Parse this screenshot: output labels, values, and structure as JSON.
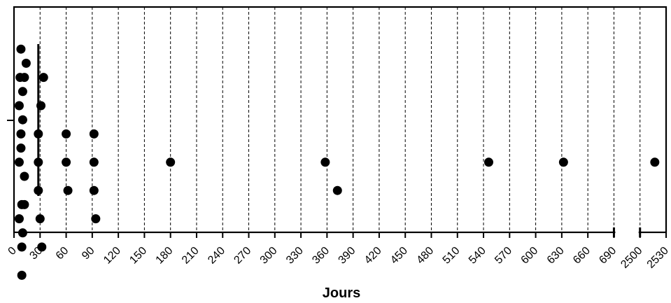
{
  "chart_data": {
    "type": "scatter",
    "title": "",
    "xlabel": "Jours",
    "ylabel": "",
    "axis_break": {
      "before": 690,
      "after": 2500
    },
    "x_ticks": [
      0,
      30,
      60,
      90,
      120,
      150,
      180,
      210,
      240,
      270,
      300,
      330,
      360,
      390,
      420,
      450,
      480,
      510,
      540,
      570,
      600,
      630,
      660,
      690,
      2500,
      2530
    ],
    "x_tick_labels": [
      "0",
      "30",
      "60",
      "90",
      "120",
      "150",
      "180",
      "210",
      "240",
      "270",
      "300",
      "330",
      "360",
      "390",
      "420",
      "450",
      "480",
      "510",
      "540",
      "570",
      "600",
      "630",
      "660",
      "690",
      "2500",
      "2530"
    ],
    "xlim": [
      0,
      2530
    ],
    "grid": "vertical dashed",
    "legend": "none",
    "reference_line": {
      "x": 28,
      "style": "solid"
    },
    "points": [
      {
        "x": 8,
        "row": -5
      },
      {
        "x": 14,
        "row": -4
      },
      {
        "x": 7,
        "row": -3
      },
      {
        "x": 12,
        "row": -3
      },
      {
        "x": 34,
        "row": -3
      },
      {
        "x": 10,
        "row": -2
      },
      {
        "x": 6,
        "row": -1
      },
      {
        "x": 31,
        "row": -1
      },
      {
        "x": 10,
        "row": 0
      },
      {
        "x": 8,
        "row": 1
      },
      {
        "x": 28,
        "row": 1
      },
      {
        "x": 60,
        "row": 1
      },
      {
        "x": 92,
        "row": 1
      },
      {
        "x": 8,
        "row": 2
      },
      {
        "x": 6,
        "row": 3
      },
      {
        "x": 28,
        "row": 3
      },
      {
        "x": 60,
        "row": 3
      },
      {
        "x": 92,
        "row": 3
      },
      {
        "x": 180,
        "row": 3
      },
      {
        "x": 358,
        "row": 3
      },
      {
        "x": 546,
        "row": 3
      },
      {
        "x": 632,
        "row": 3
      },
      {
        "x": 2517,
        "row": 3
      },
      {
        "x": 12,
        "row": 4
      },
      {
        "x": 28,
        "row": 5
      },
      {
        "x": 62,
        "row": 5
      },
      {
        "x": 92,
        "row": 5
      },
      {
        "x": 372,
        "row": 5
      },
      {
        "x": 9,
        "row": 6
      },
      {
        "x": 12,
        "row": 6
      },
      {
        "x": 6,
        "row": 7
      },
      {
        "x": 30,
        "row": 7
      },
      {
        "x": 94,
        "row": 7
      },
      {
        "x": 10,
        "row": 8
      },
      {
        "x": 9,
        "row": 9
      },
      {
        "x": 32,
        "row": 9
      },
      {
        "x": 9,
        "row": 11
      }
    ]
  }
}
